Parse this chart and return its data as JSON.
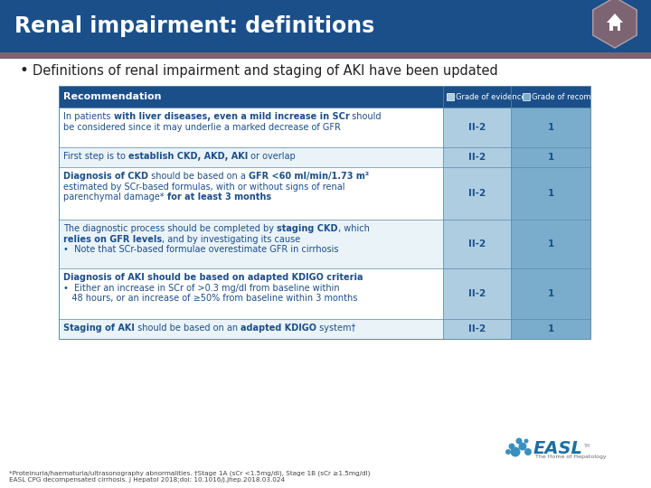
{
  "title": "Renal impairment: definitions",
  "title_bg": "#1b4f8a",
  "title_accent": "#7d6472",
  "title_font_color": "#ffffff",
  "bullet_text": "Definitions of renal impairment and staging of AKI have been updated",
  "bg_color": "#ffffff",
  "table_header_bg": "#1b4f8a",
  "table_col2_bg": "#aecde0",
  "table_col3_bg": "#7aadcc",
  "table_border": "#5a8aaa",
  "grade_evidence_color": "#aecde0",
  "grade_rec_color": "#7aadcc",
  "dark_blue": "#1b4f8a",
  "row_bgs": [
    "#ffffff",
    "#eaf3f8",
    "#ffffff",
    "#eaf3f8",
    "#ffffff",
    "#eaf3f8"
  ],
  "rows": [
    {
      "lines": [
        [
          {
            "text": "In patients ",
            "bold": false
          },
          {
            "text": "with liver diseases, even a mild increase in SCr",
            "bold": true
          },
          {
            "text": " should",
            "bold": false
          }
        ],
        [
          {
            "text": "be considered since it may underlie a marked decrease of GFR",
            "bold": false
          }
        ]
      ],
      "col2": "II-2",
      "col3": "1"
    },
    {
      "lines": [
        [
          {
            "text": "First step is to ",
            "bold": false
          },
          {
            "text": "establish CKD, AKD, AKI",
            "bold": true
          },
          {
            "text": " or overlap",
            "bold": false
          }
        ]
      ],
      "col2": "II-2",
      "col3": "1"
    },
    {
      "lines": [
        [
          {
            "text": "Diagnosis of CKD",
            "bold": true
          },
          {
            "text": " should be based on a ",
            "bold": false
          },
          {
            "text": "GFR <60 ml/min/1.73 m²",
            "bold": true
          }
        ],
        [
          {
            "text": "estimated by SCr-based formulas, with or without signs of renal",
            "bold": false
          }
        ],
        [
          {
            "text": "parenchymal damage* ",
            "bold": false
          },
          {
            "text": "for at least 3 months",
            "bold": true
          }
        ]
      ],
      "col2": "II-2",
      "col3": "1"
    },
    {
      "lines": [
        [
          {
            "text": "The diagnostic process should be completed by ",
            "bold": false
          },
          {
            "text": "staging CKD",
            "bold": true
          },
          {
            "text": ", which",
            "bold": false
          }
        ],
        [
          {
            "text": "relies on GFR levels",
            "bold": true
          },
          {
            "text": ", and by investigating its cause",
            "bold": false
          }
        ],
        [
          {
            "text": "•  Note that SCr-based formulae overestimate GFR in cirrhosis",
            "bold": false
          }
        ]
      ],
      "col2": "II-2",
      "col3": "1"
    },
    {
      "lines": [
        [
          {
            "text": "Diagnosis of AKI should be based on adapted KDIGO criteria",
            "bold": true
          }
        ],
        [
          {
            "text": "•  Either an increase in SCr of >0.3 mg/dl from baseline within",
            "bold": false
          }
        ],
        [
          {
            "text": "   48 hours, or an increase of ≥50% from baseline within 3 months",
            "bold": false
          }
        ]
      ],
      "col2": "II-2",
      "col3": "1"
    },
    {
      "lines": [
        [
          {
            "text": "Staging of AKI",
            "bold": true
          },
          {
            "text": " should be based on an ",
            "bold": false
          },
          {
            "text": "adapted KDIGO",
            "bold": true
          },
          {
            "text": " system†",
            "bold": false
          }
        ]
      ],
      "col2": "II-2",
      "col3": "1"
    }
  ],
  "footer_line1": "*Proteinuria/haematuria/ultrasonography abnormalities. †Stage 1A (sCr <1.5mg/dl), Stage 1B (sCr ≥1.5mg/dl)",
  "footer_line2": "EASL CPG decompensated cirrhosis. J Hepatol 2018;doi: 10.1016/j.jhep.2018.03.024"
}
